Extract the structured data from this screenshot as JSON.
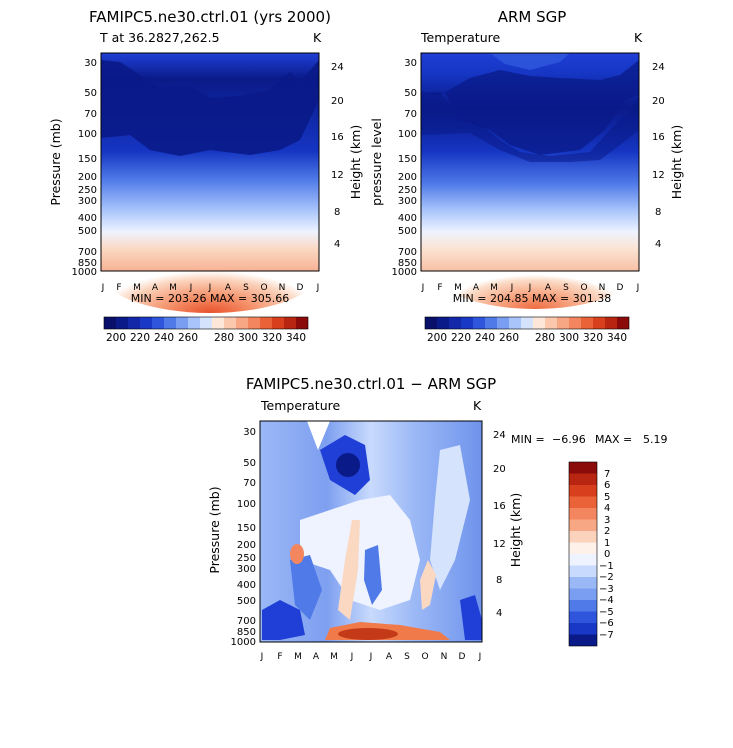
{
  "colors": {
    "deep_blue": "#0a1a88",
    "mid_blue": "#1f3fd6",
    "light_blue": "#cfe0ff",
    "near_white": "#eef3ff",
    "light_orange": "#fbd8c2",
    "orange": "#f07a4a",
    "dark_red": "#8b0a0a"
  },
  "chart_data": [
    {
      "type": "heatmap",
      "title": "FAMIPC5.ne30.ctrl.01 (yrs 2000)",
      "subtitle_left": "T at 36.2827,262.5",
      "subtitle_right": "K",
      "ylabel": "Pressure (mb)",
      "ylabel_right": "Height (km)",
      "x_ticks": [
        "J",
        "F",
        "M",
        "A",
        "M",
        "J",
        "J",
        "A",
        "S",
        "O",
        "N",
        "D",
        "J"
      ],
      "y_ticks": [
        "30",
        "50",
        "70",
        "100",
        "150",
        "200",
        "250",
        "300",
        "400",
        "500",
        "700",
        "850",
        "1000"
      ],
      "y_ticks_right": [
        "24",
        "20",
        "16",
        "12",
        "8",
        "4"
      ],
      "min_max_text": "MIN = 203.26  MAX = 305.66",
      "colorbar_labels": [
        "200",
        "220",
        "240",
        "260",
        "280",
        "300",
        "320",
        "340"
      ],
      "data_min": 203.26,
      "data_max": 305.66
    },
    {
      "type": "heatmap",
      "title": "ARM SGP",
      "subtitle_left": "Temperature",
      "subtitle_right": "K",
      "ylabel": "pressure level",
      "ylabel_right": "Height (km)",
      "x_ticks": [
        "J",
        "F",
        "M",
        "A",
        "M",
        "J",
        "J",
        "A",
        "S",
        "O",
        "N",
        "D",
        "J"
      ],
      "y_ticks": [
        "30",
        "50",
        "70",
        "100",
        "150",
        "200",
        "250",
        "300",
        "400",
        "500",
        "700",
        "850",
        "1000"
      ],
      "y_ticks_right": [
        "24",
        "20",
        "16",
        "12",
        "8",
        "4"
      ],
      "min_max_text": "MIN = 204.85  MAX = 301.38",
      "colorbar_labels": [
        "200",
        "220",
        "240",
        "260",
        "280",
        "300",
        "320",
        "340"
      ],
      "data_min": 204.85,
      "data_max": 301.38
    },
    {
      "type": "heatmap",
      "title": "FAMIPC5.ne30.ctrl.01 − ARM SGP",
      "subtitle_left": "Temperature",
      "subtitle_right": "K",
      "ylabel": "Pressure (mb)",
      "ylabel_right": "Height (km)",
      "x_ticks": [
        "J",
        "F",
        "M",
        "A",
        "M",
        "J",
        "J",
        "A",
        "S",
        "O",
        "N",
        "D",
        "J"
      ],
      "y_ticks": [
        "30",
        "50",
        "70",
        "100",
        "150",
        "200",
        "250",
        "300",
        "400",
        "500",
        "700",
        "850",
        "1000"
      ],
      "y_ticks_right": [
        "24",
        "20",
        "16",
        "12",
        "8",
        "4"
      ],
      "min_text": "MIN =",
      "min_value": "−6.96",
      "max_text": "MAX =",
      "max_value": "5.19",
      "colorbar_labels": [
        "7",
        "6",
        "5",
        "4",
        "3",
        "2",
        "1",
        "0",
        "−1",
        "−2",
        "−3",
        "−4",
        "−5",
        "−6",
        "−7"
      ],
      "data_min": -6.96,
      "data_max": 5.19
    }
  ]
}
